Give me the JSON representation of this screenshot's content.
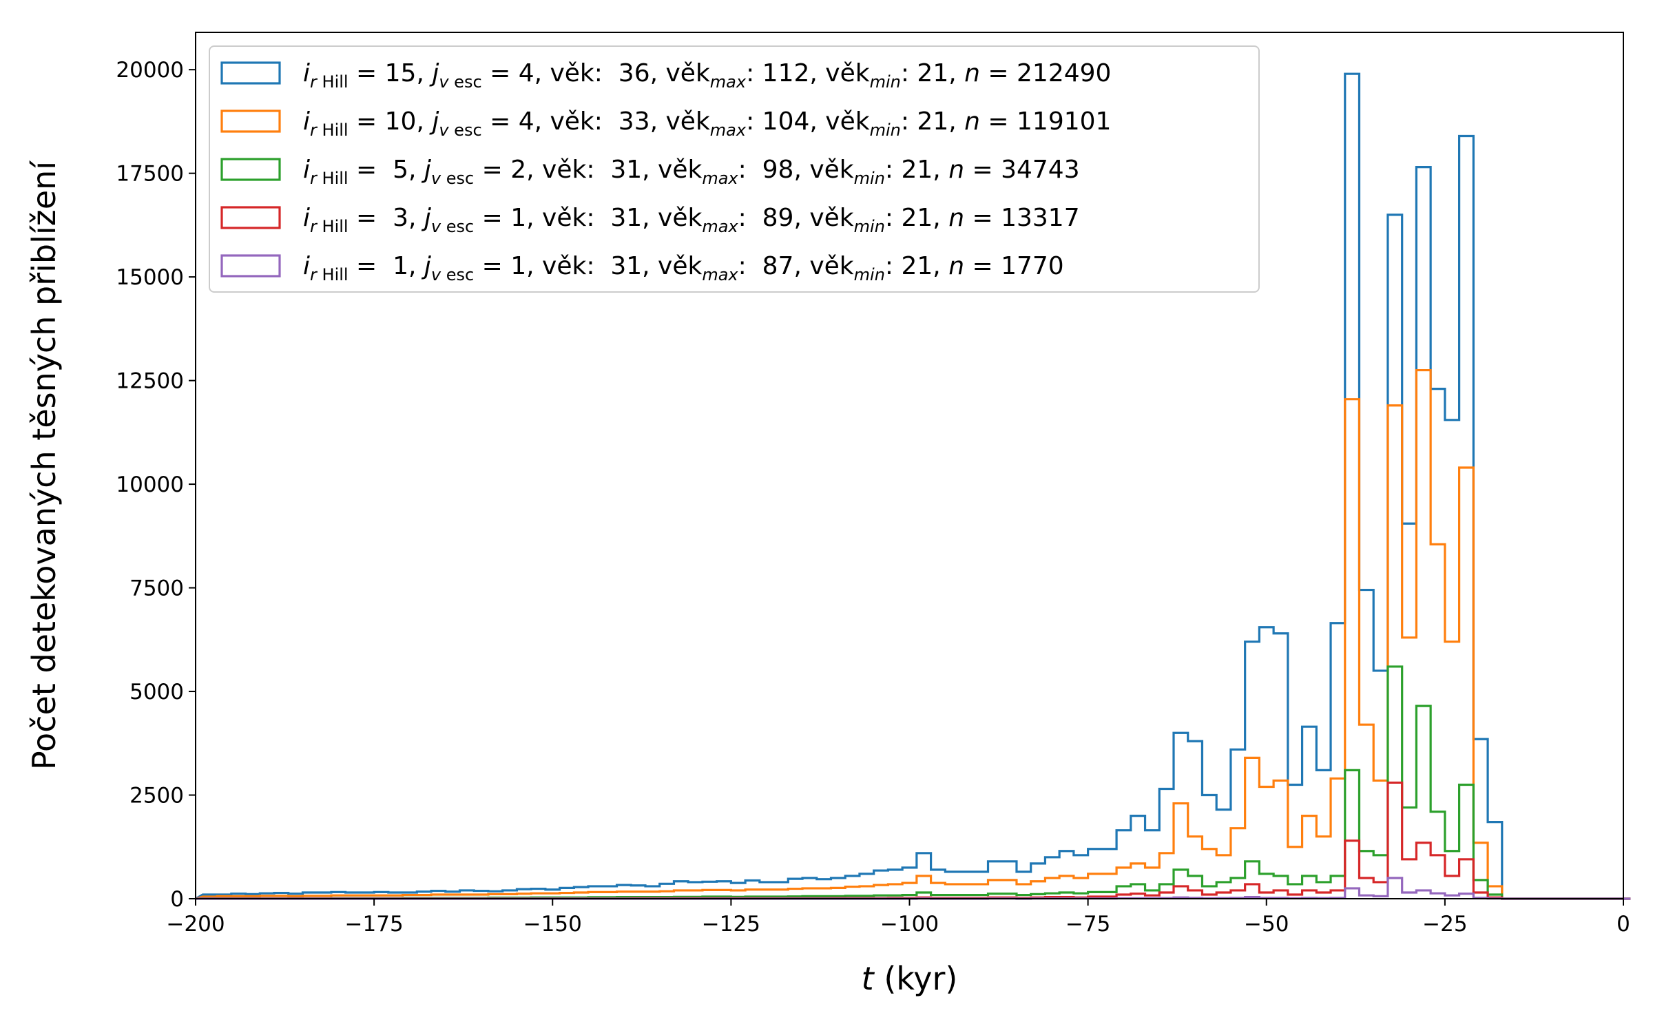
{
  "chart_data": {
    "type": "histogram",
    "title": "",
    "xlabel_var": "t",
    "xlabel_unit": "(kyr)",
    "ylabel": "Počet detekovaných těsných přiblížení",
    "xlim": [
      -200,
      0
    ],
    "ylim": [
      0,
      20900
    ],
    "x_ticks": [
      -200,
      -175,
      -150,
      -125,
      -100,
      -75,
      -50,
      -25,
      0
    ],
    "x_tick_labels": [
      "−200",
      "−175",
      "−150",
      "−125",
      "−100",
      "−75",
      "−50",
      "−25",
      "0"
    ],
    "y_ticks": [
      0,
      2500,
      5000,
      7500,
      10000,
      12500,
      15000,
      17500,
      20000
    ],
    "y_tick_labels": [
      "0",
      "2500",
      "5000",
      "7500",
      "10000",
      "12500",
      "15000",
      "17500",
      "20000"
    ],
    "grid": false,
    "legend_position": "top-left",
    "bin_width": 2,
    "bin_edges_range": [
      -200,
      0
    ],
    "series": [
      {
        "name": "i_rHill = 15, j_vesc = 4, věk: 36, věk_max: 112, věk_min: 21, n = 212490",
        "legend": {
          "i": "15",
          "j": "4",
          "age": "36",
          "age_max": "112",
          "age_min": "21",
          "n": "212490"
        },
        "color": "#1f77b4",
        "x": [
          -198,
          -196,
          -194,
          -192,
          -190,
          -188,
          -186,
          -184,
          -182,
          -180,
          -178,
          -176,
          -174,
          -172,
          -170,
          -168,
          -166,
          -164,
          -162,
          -160,
          -158,
          -156,
          -154,
          -152,
          -150,
          -148,
          -146,
          -144,
          -142,
          -140,
          -138,
          -136,
          -134,
          -132,
          -130,
          -128,
          -126,
          -124,
          -122,
          -120,
          -118,
          -116,
          -114,
          -112,
          -110,
          -108,
          -106,
          -104,
          -102,
          -100,
          -98,
          -96,
          -94,
          -92,
          -90,
          -88,
          -86,
          -84,
          -82,
          -80,
          -78,
          -76,
          -74,
          -72,
          -70,
          -68,
          -66,
          -64,
          -62,
          -60,
          -58,
          -56,
          -54,
          -52,
          -50,
          -48,
          -46,
          -44,
          -42,
          -40,
          -38,
          -36,
          -34,
          -32,
          -30,
          -28,
          -26,
          -24,
          -22,
          -20,
          -18,
          -16,
          -14,
          -12,
          -10,
          -8,
          -6,
          -4,
          -2,
          0
        ],
        "values": [
          100,
          100,
          120,
          110,
          130,
          140,
          120,
          150,
          150,
          160,
          150,
          150,
          160,
          150,
          150,
          170,
          190,
          170,
          200,
          190,
          180,
          200,
          230,
          240,
          220,
          260,
          280,
          300,
          300,
          330,
          320,
          300,
          360,
          420,
          400,
          410,
          420,
          380,
          440,
          400,
          400,
          480,
          500,
          470,
          500,
          550,
          600,
          680,
          700,
          750,
          1100,
          700,
          650,
          650,
          650,
          900,
          900,
          650,
          850,
          1000,
          1150,
          1050,
          1200,
          1200,
          1650,
          2000,
          1650,
          2650,
          4000,
          3800,
          2500,
          2150,
          3600,
          6200,
          6550,
          6400,
          2750,
          4150,
          3100,
          6650,
          19900,
          7450,
          5500,
          16500,
          9050,
          17650,
          12300,
          11550,
          18400,
          3850,
          1850,
          0,
          0,
          0,
          0,
          0,
          0,
          0,
          0,
          0
        ]
      },
      {
        "name": "i_rHill = 10, j_vesc = 4, věk: 33, věk_max: 104, věk_min: 21, n = 119101",
        "legend": {
          "i": "10",
          "j": "4",
          "age": "33",
          "age_max": "104",
          "age_min": "21",
          "n": "119101"
        },
        "color": "#ff7f0e",
        "x": [
          -198,
          -196,
          -194,
          -192,
          -190,
          -188,
          -186,
          -184,
          -182,
          -180,
          -178,
          -176,
          -174,
          -172,
          -170,
          -168,
          -166,
          -164,
          -162,
          -160,
          -158,
          -156,
          -154,
          -152,
          -150,
          -148,
          -146,
          -144,
          -142,
          -140,
          -138,
          -136,
          -134,
          -132,
          -130,
          -128,
          -126,
          -124,
          -122,
          -120,
          -118,
          -116,
          -114,
          -112,
          -110,
          -108,
          -106,
          -104,
          -102,
          -100,
          -98,
          -96,
          -94,
          -92,
          -90,
          -88,
          -86,
          -84,
          -82,
          -80,
          -78,
          -76,
          -74,
          -72,
          -70,
          -68,
          -66,
          -64,
          -62,
          -60,
          -58,
          -56,
          -54,
          -52,
          -50,
          -48,
          -46,
          -44,
          -42,
          -40,
          -38,
          -36,
          -34,
          -32,
          -30,
          -28,
          -26,
          -24,
          -22,
          -20,
          -18,
          -16,
          -14,
          -12,
          -10,
          -8,
          -6,
          -4,
          -2,
          0
        ],
        "values": [
          50,
          60,
          60,
          60,
          70,
          70,
          60,
          70,
          70,
          80,
          80,
          80,
          80,
          80,
          90,
          90,
          100,
          100,
          100,
          100,
          110,
          110,
          120,
          130,
          130,
          140,
          150,
          160,
          160,
          170,
          170,
          170,
          180,
          200,
          200,
          210,
          210,
          200,
          220,
          220,
          220,
          240,
          250,
          250,
          260,
          290,
          300,
          330,
          350,
          380,
          550,
          380,
          350,
          350,
          350,
          450,
          450,
          350,
          420,
          500,
          550,
          500,
          600,
          600,
          750,
          850,
          750,
          1100,
          2300,
          1500,
          1200,
          1050,
          1700,
          3400,
          2700,
          2850,
          1250,
          2000,
          1500,
          2900,
          12050,
          4200,
          2850,
          11900,
          6300,
          12750,
          8550,
          6200,
          10400,
          1350,
          300,
          0,
          0,
          0,
          0,
          0,
          0,
          0,
          0,
          0
        ]
      },
      {
        "name": "i_rHill = 5, j_vesc = 2, věk: 31, věk_max: 98, věk_min: 21, n = 34743",
        "legend": {
          "i": " 5",
          "j": "2",
          "age": "31",
          "age_max": " 98",
          "age_min": "21",
          "n": "34743"
        },
        "color": "#2ca02c",
        "x": [
          -198,
          -196,
          -194,
          -192,
          -190,
          -188,
          -186,
          -184,
          -182,
          -180,
          -178,
          -176,
          -174,
          -172,
          -170,
          -168,
          -166,
          -164,
          -162,
          -160,
          -158,
          -156,
          -154,
          -152,
          -150,
          -148,
          -146,
          -144,
          -142,
          -140,
          -138,
          -136,
          -134,
          -132,
          -130,
          -128,
          -126,
          -124,
          -122,
          -120,
          -118,
          -116,
          -114,
          -112,
          -110,
          -108,
          -106,
          -104,
          -102,
          -100,
          -98,
          -96,
          -94,
          -92,
          -90,
          -88,
          -86,
          -84,
          -82,
          -80,
          -78,
          -76,
          -74,
          -72,
          -70,
          -68,
          -66,
          -64,
          -62,
          -60,
          -58,
          -56,
          -54,
          -52,
          -50,
          -48,
          -46,
          -44,
          -42,
          -40,
          -38,
          -36,
          -34,
          -32,
          -30,
          -28,
          -26,
          -24,
          -22,
          -20,
          -18,
          -16,
          -14,
          -12,
          -10,
          -8,
          -6,
          -4,
          -2,
          0
        ],
        "values": [
          10,
          10,
          10,
          10,
          10,
          10,
          10,
          10,
          10,
          15,
          15,
          15,
          15,
          15,
          20,
          20,
          20,
          20,
          20,
          20,
          25,
          25,
          25,
          30,
          30,
          30,
          30,
          35,
          35,
          40,
          40,
          40,
          40,
          45,
          45,
          50,
          50,
          45,
          50,
          50,
          50,
          55,
          60,
          60,
          60,
          70,
          70,
          80,
          80,
          90,
          150,
          90,
          90,
          90,
          90,
          120,
          120,
          90,
          110,
          130,
          150,
          130,
          160,
          160,
          300,
          350,
          200,
          350,
          700,
          550,
          300,
          400,
          500,
          900,
          600,
          550,
          350,
          550,
          400,
          550,
          3100,
          1150,
          1050,
          5600,
          2200,
          4650,
          2100,
          1150,
          2750,
          450,
          100,
          0,
          0,
          0,
          0,
          0,
          0,
          0,
          0,
          0
        ]
      },
      {
        "name": "i_rHill = 3, j_vesc = 1, věk: 31, věk_max: 89, věk_min: 21, n = 13317",
        "legend": {
          "i": " 3",
          "j": "1",
          "age": "31",
          "age_max": " 89",
          "age_min": "21",
          "n": "13317"
        },
        "color": "#d62728",
        "x": [
          -198,
          -196,
          -194,
          -192,
          -190,
          -188,
          -186,
          -184,
          -182,
          -180,
          -178,
          -176,
          -174,
          -172,
          -170,
          -168,
          -166,
          -164,
          -162,
          -160,
          -158,
          -156,
          -154,
          -152,
          -150,
          -148,
          -146,
          -144,
          -142,
          -140,
          -138,
          -136,
          -134,
          -132,
          -130,
          -128,
          -126,
          -124,
          -122,
          -120,
          -118,
          -116,
          -114,
          -112,
          -110,
          -108,
          -106,
          -104,
          -102,
          -100,
          -98,
          -96,
          -94,
          -92,
          -90,
          -88,
          -86,
          -84,
          -82,
          -80,
          -78,
          -76,
          -74,
          -72,
          -70,
          -68,
          -66,
          -64,
          -62,
          -60,
          -58,
          -56,
          -54,
          -52,
          -50,
          -48,
          -46,
          -44,
          -42,
          -40,
          -38,
          -36,
          -34,
          -32,
          -30,
          -28,
          -26,
          -24,
          -22,
          -20,
          -18,
          -16,
          -14,
          -12,
          -10,
          -8,
          -6,
          -4,
          -2,
          0
        ],
        "values": [
          5,
          5,
          5,
          5,
          5,
          5,
          5,
          5,
          5,
          5,
          5,
          5,
          5,
          5,
          5,
          5,
          5,
          5,
          5,
          5,
          5,
          5,
          5,
          5,
          5,
          5,
          5,
          5,
          5,
          5,
          10,
          10,
          10,
          10,
          10,
          10,
          10,
          10,
          10,
          10,
          10,
          10,
          10,
          10,
          15,
          15,
          15,
          15,
          20,
          20,
          30,
          20,
          20,
          20,
          20,
          30,
          30,
          20,
          30,
          40,
          40,
          30,
          50,
          50,
          100,
          120,
          80,
          150,
          300,
          200,
          100,
          150,
          200,
          350,
          150,
          200,
          100,
          200,
          150,
          200,
          1400,
          500,
          400,
          2800,
          950,
          1350,
          1050,
          550,
          950,
          150,
          30,
          0,
          0,
          0,
          0,
          0,
          0,
          0,
          0,
          0
        ]
      },
      {
        "name": "i_rHill = 1, j_vesc = 1, věk: 31, věk_max: 87, věk_min: 21, n = 1770",
        "legend": {
          "i": " 1",
          "j": "1",
          "age": "31",
          "age_max": " 87",
          "age_min": "21",
          "n": "1770"
        },
        "color": "#9467bd",
        "x": [
          -198,
          -196,
          -194,
          -192,
          -190,
          -188,
          -186,
          -184,
          -182,
          -180,
          -178,
          -176,
          -174,
          -172,
          -170,
          -168,
          -166,
          -164,
          -162,
          -160,
          -158,
          -156,
          -154,
          -152,
          -150,
          -148,
          -146,
          -144,
          -142,
          -140,
          -138,
          -136,
          -134,
          -132,
          -130,
          -128,
          -126,
          -124,
          -122,
          -120,
          -118,
          -116,
          -114,
          -112,
          -110,
          -108,
          -106,
          -104,
          -102,
          -100,
          -98,
          -96,
          -94,
          -92,
          -90,
          -88,
          -86,
          -84,
          -82,
          -80,
          -78,
          -76,
          -74,
          -72,
          -70,
          -68,
          -66,
          -64,
          -62,
          -60,
          -58,
          -56,
          -54,
          -52,
          -50,
          -48,
          -46,
          -44,
          -42,
          -40,
          -38,
          -36,
          -34,
          -32,
          -30,
          -28,
          -26,
          -24,
          -22,
          -20,
          -18,
          -16,
          -14,
          -12,
          -10,
          -8,
          -6,
          -4,
          -2,
          0
        ],
        "values": [
          0,
          0,
          0,
          0,
          0,
          0,
          0,
          0,
          0,
          0,
          0,
          0,
          0,
          0,
          0,
          0,
          0,
          0,
          0,
          0,
          0,
          0,
          0,
          0,
          0,
          0,
          0,
          0,
          0,
          0,
          0,
          0,
          0,
          0,
          0,
          0,
          0,
          0,
          0,
          0,
          0,
          0,
          0,
          0,
          0,
          0,
          0,
          0,
          0,
          0,
          5,
          0,
          0,
          0,
          0,
          5,
          5,
          0,
          5,
          5,
          5,
          5,
          5,
          5,
          10,
          10,
          10,
          15,
          30,
          20,
          10,
          15,
          20,
          40,
          20,
          20,
          10,
          20,
          15,
          20,
          250,
          80,
          60,
          500,
          150,
          200,
          130,
          80,
          120,
          20,
          5,
          0,
          0,
          0,
          0,
          0,
          0,
          0,
          0,
          0
        ]
      }
    ]
  }
}
